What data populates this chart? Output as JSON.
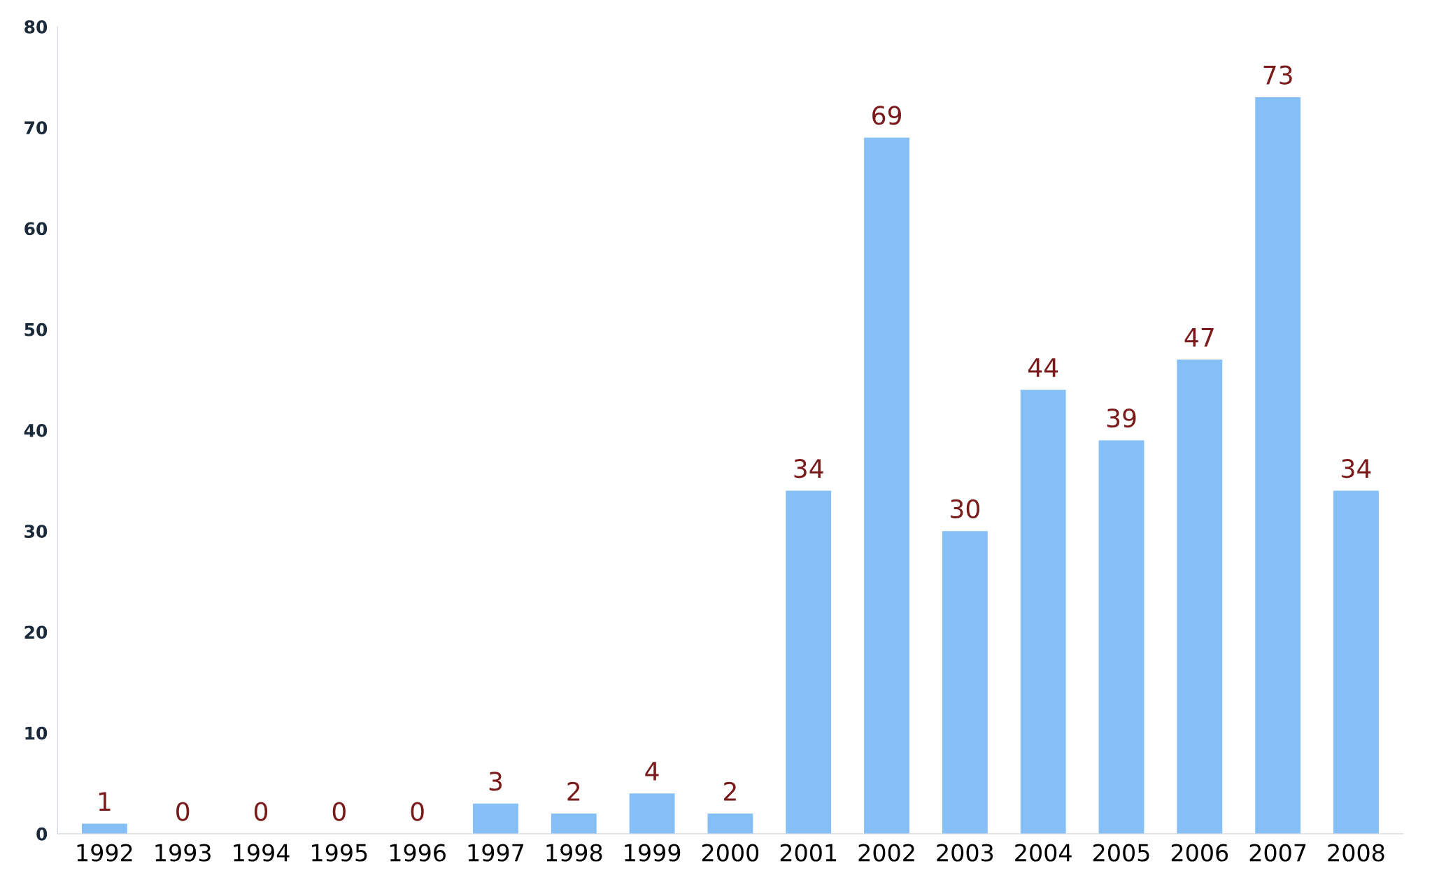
{
  "chart_data": {
    "type": "bar",
    "categories": [
      "1992",
      "1993",
      "1994",
      "1995",
      "1996",
      "1997",
      "1998",
      "1999",
      "2000",
      "2001",
      "2002",
      "2003",
      "2004",
      "2005",
      "2006",
      "2007",
      "2008"
    ],
    "values": [
      1,
      0,
      0,
      0,
      0,
      3,
      2,
      4,
      2,
      34,
      69,
      30,
      44,
      39,
      47,
      73,
      34
    ],
    "color": "#85bff5",
    "ylim": [
      0,
      80
    ],
    "yticks": [
      0,
      10,
      20,
      30,
      40,
      50,
      60,
      70,
      80
    ],
    "grid": false,
    "data_labels": true
  }
}
